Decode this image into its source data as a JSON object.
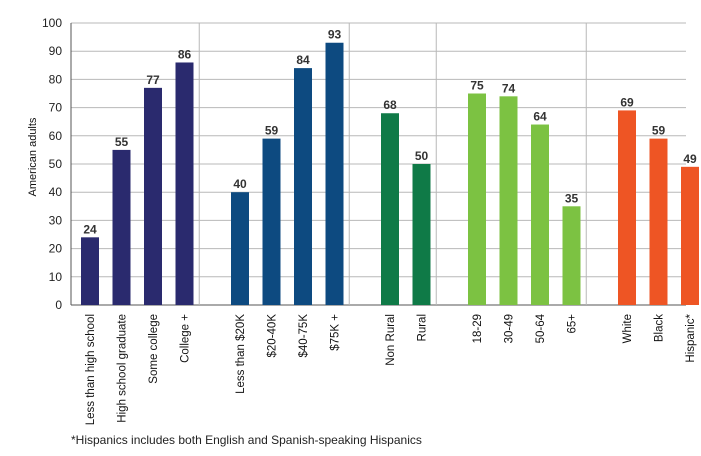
{
  "chart_data": {
    "type": "bar",
    "ylabel": "American adults",
    "ylim": [
      0,
      100
    ],
    "yticks": [
      0,
      10,
      20,
      30,
      40,
      50,
      60,
      70,
      80,
      90,
      100
    ],
    "grid": true,
    "groups": [
      {
        "color": "#2a2a6e",
        "bars": [
          {
            "label": "Less than high school",
            "value": 24
          },
          {
            "label": "High school graduate",
            "value": 55
          },
          {
            "label": "Some college",
            "value": 77
          },
          {
            "label": "College +",
            "value": 86
          }
        ]
      },
      {
        "color": "#0d4a80",
        "bars": [
          {
            "label": "Less than $20K",
            "value": 40
          },
          {
            "label": "$20-40K",
            "value": 59
          },
          {
            "label": "$40-75K",
            "value": 84
          },
          {
            "label": "$75K +",
            "value": 93
          }
        ]
      },
      {
        "color": "#0f7a47",
        "bars": [
          {
            "label": "Non Rural",
            "value": 68
          },
          {
            "label": "Rural",
            "value": 50
          }
        ]
      },
      {
        "color": "#7cc242",
        "bars": [
          {
            "label": "18-29",
            "value": 75
          },
          {
            "label": "30-49",
            "value": 74
          },
          {
            "label": "50-64",
            "value": 64
          },
          {
            "label": "65+",
            "value": 35
          }
        ]
      },
      {
        "color": "#ee5524",
        "bars": [
          {
            "label": "White",
            "value": 69
          },
          {
            "label": "Black",
            "value": 59
          },
          {
            "label": "Hispanic*",
            "value": 49
          }
        ]
      }
    ]
  },
  "footnote": "*Hispanics includes both English and Spanish-speaking Hispanics"
}
